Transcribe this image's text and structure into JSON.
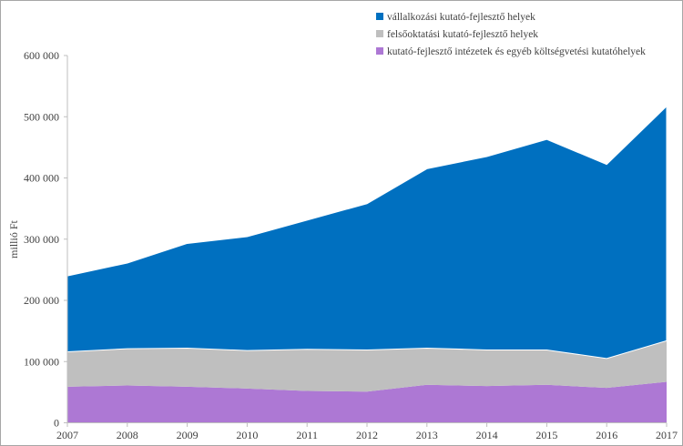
{
  "chart_data": {
    "type": "area",
    "stacked": true,
    "title": "",
    "xlabel": "",
    "ylabel": "millió Ft",
    "ylim": [
      0,
      600000
    ],
    "yticks": [
      0,
      100000,
      200000,
      300000,
      400000,
      500000,
      600000
    ],
    "ytick_labels": [
      "0",
      "100 000",
      "200 000",
      "300 000",
      "400 000",
      "500 000",
      "600 000"
    ],
    "categories": [
      "2007",
      "2008",
      "2009",
      "2010",
      "2011",
      "2012",
      "2013",
      "2014",
      "2015",
      "2016",
      "2017"
    ],
    "grid": false,
    "legend_position": "top-right",
    "series": [
      {
        "name": "kutató-fejlesztő intézetek és egyéb költségvetési kutatóhelyek",
        "color": "#ad78d4",
        "values": [
          59000,
          61000,
          59000,
          56000,
          52000,
          51000,
          62000,
          60000,
          62000,
          57000,
          67000
        ]
      },
      {
        "name": "felsőoktatási kutató-fejlesztő helyek",
        "color": "#bfbfbf",
        "values": [
          57000,
          60000,
          63000,
          62000,
          68000,
          68000,
          60000,
          59000,
          57000,
          48000,
          67000
        ]
      },
      {
        "name": "vállalkozási kutató-fejlesztő helyek",
        "color": "#0070c0",
        "values": [
          124000,
          140000,
          171000,
          186000,
          211000,
          239000,
          293000,
          316000,
          344000,
          317000,
          383000
        ]
      }
    ],
    "legend_order": [
      2,
      1,
      0
    ]
  }
}
